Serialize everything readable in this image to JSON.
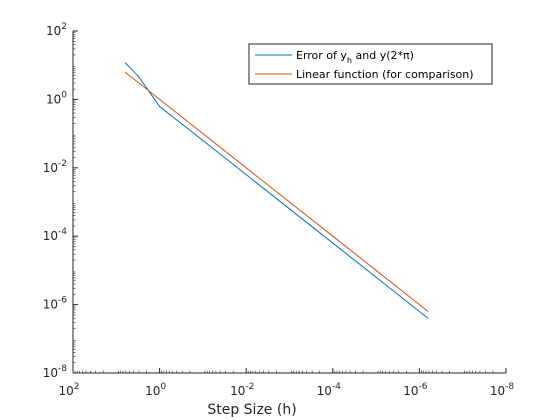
{
  "chart_data": {
    "type": "line",
    "xscale": "log",
    "yscale": "log",
    "x_reversed": true,
    "xlim": [
      100,
      1e-08
    ],
    "ylim": [
      1e-08,
      100
    ],
    "grid": false,
    "legend_placement": "top-right",
    "xlabel": "Step Size (h)",
    "ylabel": "",
    "title": "",
    "xticks": [
      {
        "base": "10",
        "exp": "2",
        "value": 100
      },
      {
        "base": "10",
        "exp": "0",
        "value": 1
      },
      {
        "base": "10",
        "exp": "-2",
        "value": 0.01
      },
      {
        "base": "10",
        "exp": "-4",
        "value": 0.0001
      },
      {
        "base": "10",
        "exp": "-6",
        "value": 1e-06
      },
      {
        "base": "10",
        "exp": "-8",
        "value": 1e-08
      }
    ],
    "yticks": [
      {
        "base": "10",
        "exp": "-8",
        "value": 1e-08
      },
      {
        "base": "10",
        "exp": "-6",
        "value": 1e-06
      },
      {
        "base": "10",
        "exp": "-4",
        "value": 0.0001
      },
      {
        "base": "10",
        "exp": "-2",
        "value": 0.01
      },
      {
        "base": "10",
        "exp": "0",
        "value": 1
      },
      {
        "base": "10",
        "exp": "2",
        "value": 100
      }
    ],
    "series": [
      {
        "name_parts": {
          "pre": "Error of y",
          "sub": "h",
          "post": " and y(2*π)"
        },
        "color": "#0072BD",
        "points": [
          [
            6.283,
            12.0
          ],
          [
            3.0,
            4.5
          ],
          [
            1.0,
            0.62
          ],
          [
            0.1,
            0.063
          ],
          [
            0.01,
            0.0063
          ],
          [
            0.0001,
            6.3e-05
          ],
          [
            1e-06,
            6.3e-07
          ],
          [
            6.3e-07,
            4e-07
          ]
        ]
      },
      {
        "name_parts": {
          "pre": "Linear function (for comparison)",
          "sub": "",
          "post": ""
        },
        "color": "#D95319",
        "points": [
          [
            6.283,
            6.283
          ],
          [
            1.0,
            1.0
          ],
          [
            0.1,
            0.1
          ],
          [
            0.01,
            0.01
          ],
          [
            0.0001,
            0.0001
          ],
          [
            1e-06,
            1e-06
          ],
          [
            6.3e-07,
            6.3e-07
          ]
        ]
      }
    ]
  }
}
